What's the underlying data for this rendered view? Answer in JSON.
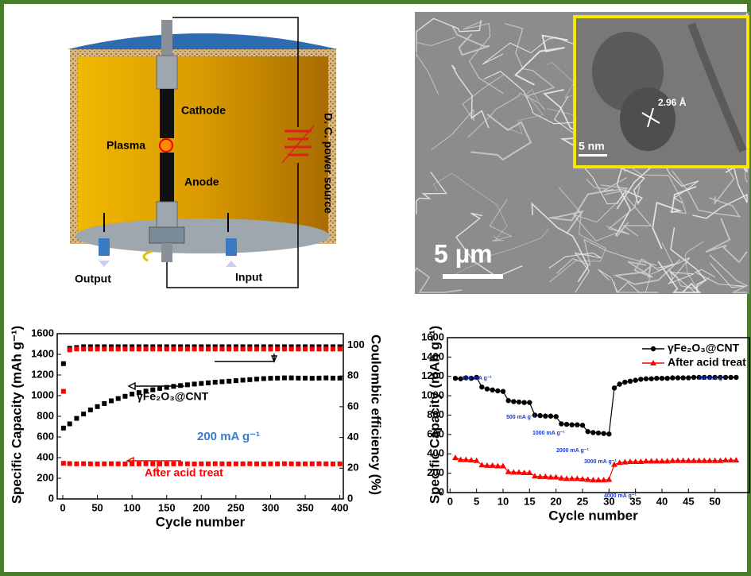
{
  "diagram": {
    "labels": {
      "cathode": "Cathode",
      "plasma": "Plasma",
      "anode": "Anode",
      "output": "Output",
      "input": "Input",
      "power": "D. C.  power source"
    }
  },
  "micrograph": {
    "scale": "5 µm",
    "inset_scale": "5 nm",
    "spacing": "2.96 Å"
  },
  "chart_data": [
    {
      "type": "line",
      "xlabel": "Cycle number",
      "ylabel": "Specific Capacity (mAh g⁻¹)",
      "y2label": "Coulombic efficiency (%)",
      "x": [
        1,
        10,
        20,
        30,
        40,
        50,
        60,
        70,
        80,
        90,
        100,
        110,
        120,
        130,
        140,
        150,
        160,
        170,
        180,
        190,
        200,
        210,
        220,
        230,
        240,
        250,
        260,
        270,
        280,
        290,
        300,
        310,
        320,
        330,
        340,
        350,
        360,
        370,
        380,
        390,
        400
      ],
      "xlim": [
        -8,
        405
      ],
      "xticks": [
        0,
        50,
        100,
        150,
        200,
        250,
        300,
        350,
        400
      ],
      "ylim": [
        0,
        1600
      ],
      "yticks": [
        0,
        200,
        400,
        600,
        800,
        1000,
        1200,
        1400,
        1600
      ],
      "y2lim": [
        0,
        107.5
      ],
      "y2ticks": [
        0,
        20,
        40,
        60,
        80,
        100
      ],
      "series": [
        {
          "name": "γFe₂O₃@CNT",
          "color": "#000000",
          "marker": "square",
          "values": [
            686,
            727,
            780,
            822,
            862,
            894,
            924,
            950,
            972,
            994,
            1015,
            1030,
            1044,
            1057,
            1070,
            1080,
            1090,
            1098,
            1105,
            1112,
            1118,
            1124,
            1130,
            1135,
            1140,
            1145,
            1150,
            1155,
            1160,
            1165,
            1168,
            1170,
            1172,
            1172,
            1170,
            1170,
            1168,
            1170,
            1172,
            1170,
            1170
          ]
        },
        {
          "name": "After acid treat",
          "color": "#ff0000",
          "marker": "square",
          "values": [
            345,
            342,
            340,
            341,
            340,
            339,
            340,
            341,
            340,
            339,
            340,
            340,
            341,
            340,
            339,
            340,
            340,
            341,
            340,
            339,
            340,
            340,
            341,
            340,
            339,
            340,
            340,
            341,
            340,
            339,
            340,
            340,
            341,
            340,
            339,
            340,
            340,
            341,
            340,
            339,
            340
          ]
        },
        {
          "color": "#000000",
          "marker": "square",
          "axis": "y2",
          "values": [
            88,
            98,
            98.5,
            99,
            99,
            99,
            99,
            99,
            99,
            99,
            99,
            99,
            99,
            99,
            99,
            99,
            99,
            99,
            99,
            99,
            99,
            99,
            99,
            99,
            99,
            99,
            99,
            99,
            99,
            99,
            99,
            99,
            99,
            99,
            99,
            99,
            99,
            99,
            99,
            99,
            99
          ]
        },
        {
          "color": "#ff0000",
          "marker": "square",
          "axis": "y2",
          "values": [
            70,
            97,
            97.5,
            97.5,
            97.5,
            97.5,
            97.5,
            97.5,
            97.5,
            97.5,
            97.5,
            97.5,
            97.5,
            97.5,
            97.5,
            97.5,
            97.5,
            97.5,
            97.5,
            97.5,
            97.5,
            97.5,
            97.5,
            97.5,
            97.5,
            97.5,
            97.5,
            97.5,
            97.5,
            97.5,
            97.5,
            97.5,
            97.5,
            97.5,
            97.5,
            97.5,
            97.5,
            97.5,
            97.5,
            97.5,
            97.5
          ]
        }
      ],
      "annotations": [
        "200 mA g⁻¹"
      ],
      "legend": false
    },
    {
      "type": "line",
      "xlabel": "Cycle number",
      "ylabel": "Specific Capacity (mAh g⁻¹)",
      "x": [
        1,
        2,
        3,
        4,
        5,
        6,
        7,
        8,
        9,
        10,
        11,
        12,
        13,
        14,
        15,
        16,
        17,
        18,
        19,
        20,
        21,
        22,
        23,
        24,
        25,
        26,
        27,
        28,
        29,
        30,
        31,
        32,
        33,
        34,
        35,
        36,
        37,
        38,
        39,
        40,
        41,
        42,
        43,
        44,
        45,
        46,
        47,
        48,
        49,
        50,
        51,
        52,
        53,
        54
      ],
      "xlim": [
        -0.5,
        56.5
      ],
      "xticks": [
        0,
        5,
        10,
        15,
        20,
        25,
        30,
        35,
        40,
        45,
        50
      ],
      "ylim": [
        0,
        1600
      ],
      "yticks": [
        0,
        200,
        400,
        600,
        800,
        1000,
        1200,
        1400,
        1600
      ],
      "series": [
        {
          "name": "γFe₂O₃@CNT",
          "color": "#000000",
          "marker": "circle",
          "values": [
            1180,
            1175,
            1185,
            1180,
            1190,
            1090,
            1070,
            1060,
            1050,
            1045,
            950,
            940,
            935,
            930,
            930,
            800,
            795,
            790,
            790,
            785,
            710,
            705,
            700,
            700,
            695,
            630,
            620,
            615,
            610,
            605,
            1080,
            1120,
            1140,
            1150,
            1160,
            1170,
            1175,
            1175,
            1180,
            1180,
            1180,
            1185,
            1185,
            1185,
            1185,
            1190,
            1190,
            1190,
            1190,
            1190,
            1190,
            1190,
            1190,
            1190
          ]
        },
        {
          "name": "After acid treat",
          "color": "#ff0000",
          "marker": "triangle",
          "values": [
            360,
            340,
            340,
            335,
            330,
            285,
            280,
            280,
            275,
            275,
            215,
            210,
            210,
            205,
            205,
            170,
            165,
            165,
            160,
            160,
            150,
            145,
            145,
            145,
            140,
            135,
            130,
            130,
            130,
            135,
            290,
            310,
            315,
            320,
            320,
            320,
            325,
            325,
            325,
            325,
            325,
            330,
            330,
            330,
            330,
            330,
            330,
            330,
            330,
            330,
            330,
            335,
            335,
            335
          ]
        }
      ],
      "annotations": [
        "200 mA g⁻¹",
        "500 mA g⁻¹",
        "1000 mA g⁻¹",
        "2000 mA g⁻¹",
        "3000 mA g⁻¹",
        "4000 mA g⁻¹",
        "200 mA g⁻¹"
      ],
      "legend": "upper right"
    }
  ]
}
